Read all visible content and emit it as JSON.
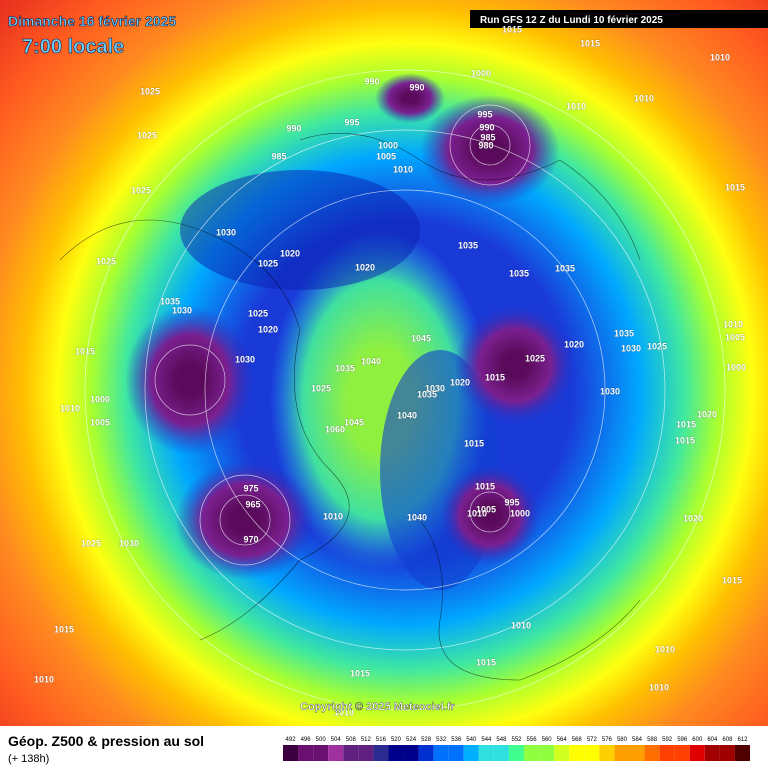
{
  "header": {
    "date": "Dimanche 16 février 2025",
    "time": "7:00 locale",
    "run": "Run GFS 12 Z du Lundi 10 février 2025"
  },
  "pressure_labels": [
    1015,
    1015,
    1010,
    1000,
    990,
    990,
    1025,
    1010,
    1010,
    995,
    990,
    995,
    990,
    985,
    980,
    1025,
    1000,
    985,
    1005,
    1010,
    1025,
    1015,
    1030,
    1035,
    1020,
    1025,
    1020,
    1035,
    1035,
    1025,
    1035,
    1030,
    1025,
    1020,
    1010,
    1035,
    1005,
    1030,
    1025,
    1020,
    1025,
    1045,
    1015,
    1030,
    1040,
    1035,
    1000,
    1020,
    1015,
    1025,
    1030,
    1035,
    1030,
    1000,
    1010,
    1020,
    1040,
    1045,
    1060,
    1005,
    1015,
    1015,
    1015,
    975,
    1015,
    965,
    995,
    1005,
    1010,
    1000,
    1040,
    1010,
    1020,
    970,
    1025,
    1030,
    1015,
    1010,
    1015,
    1015,
    1010,
    1015,
    1010,
    1010,
    1010
  ],
  "copyright": "Copyright © 2025 Meteociel.fr",
  "footer": {
    "title": "Géop. Z500 & pression au sol",
    "lead": "(+ 138h)"
  },
  "legend": {
    "labels": [
      492,
      496,
      500,
      504,
      508,
      512,
      516,
      520,
      524,
      528,
      532,
      536,
      540,
      544,
      548,
      552,
      556,
      560,
      564,
      568,
      572,
      576,
      580,
      584,
      588,
      592,
      596,
      600,
      604,
      608,
      612
    ]
  }
}
